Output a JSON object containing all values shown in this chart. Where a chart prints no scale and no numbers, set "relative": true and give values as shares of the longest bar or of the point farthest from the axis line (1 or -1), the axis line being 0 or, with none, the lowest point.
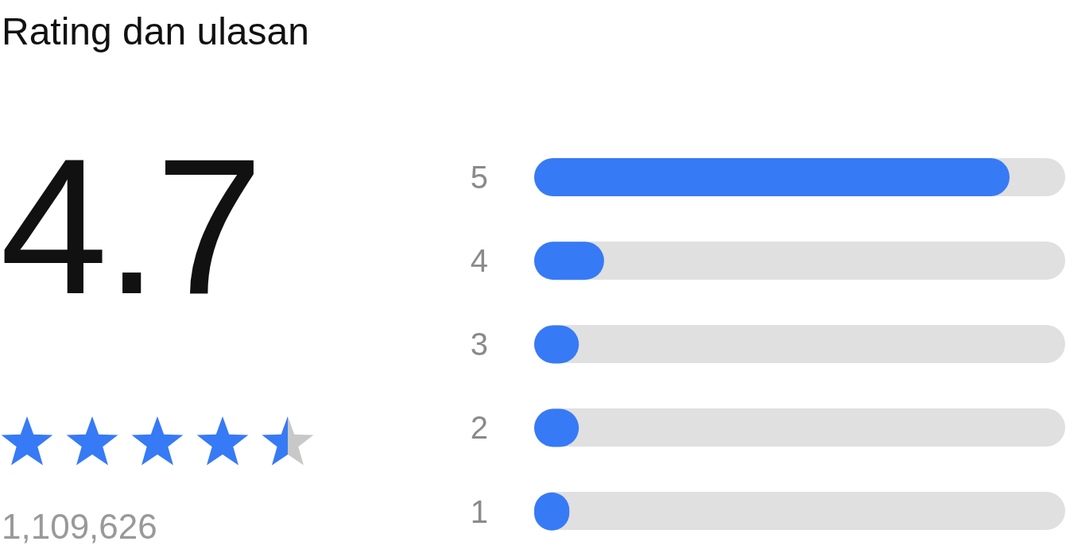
{
  "chart_data": {
    "type": "bar",
    "title": "Rating dan ulasan",
    "orientation": "horizontal",
    "relative": true,
    "categories": [
      "5",
      "4",
      "3",
      "2",
      "1"
    ],
    "values": [
      1,
      0.147,
      0.094,
      0.094,
      0.074
    ],
    "color": "#377af5",
    "annotations": [
      "4.7",
      "1,109,626"
    ]
  }
}
